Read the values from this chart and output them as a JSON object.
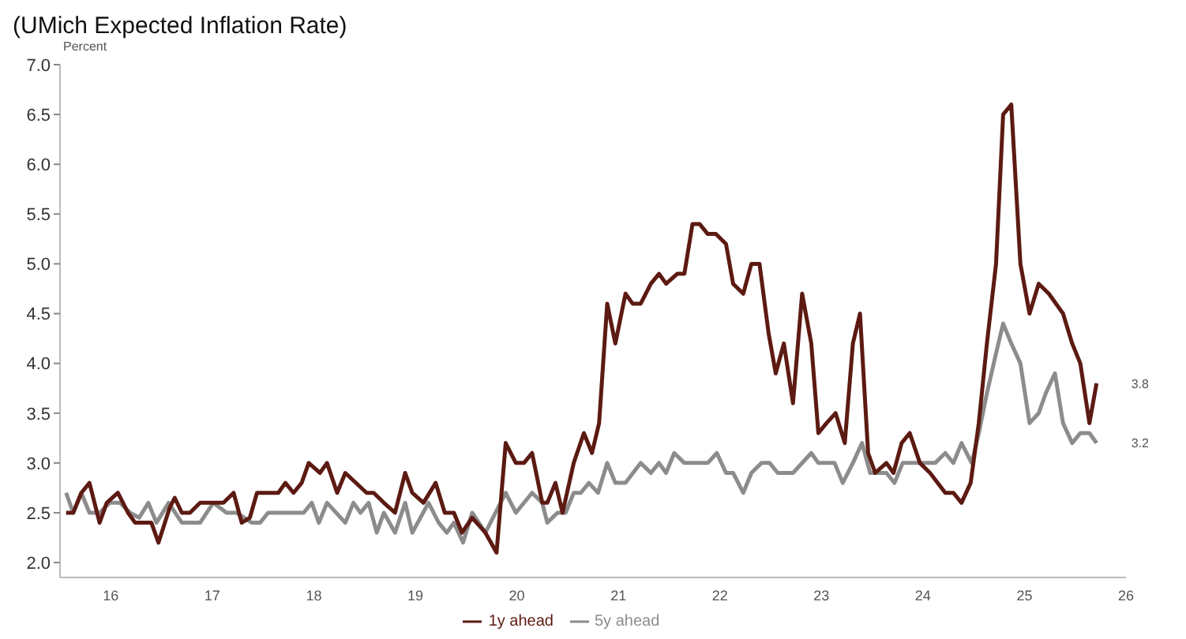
{
  "chart_data": {
    "type": "line",
    "subtitle": "(UMich Expected Inflation Rate)",
    "ylabel": "Percent",
    "xlim": [
      15.5,
      26
    ],
    "xticks": [
      16,
      17,
      18,
      19,
      20,
      21,
      22,
      23,
      24,
      25,
      26
    ],
    "ylim": [
      1.85,
      7
    ],
    "yticks": [
      {
        "value": 2,
        "label": "2.0"
      },
      {
        "value": 2.5,
        "label": "2.5"
      },
      {
        "value": 3,
        "label": "3.0"
      },
      {
        "value": 3.5,
        "label": "3.5"
      },
      {
        "value": 4,
        "label": "4.0"
      },
      {
        "value": 4.5,
        "label": "4.5"
      },
      {
        "value": 5,
        "label": "5.0"
      },
      {
        "value": 5.5,
        "label": "5.5"
      },
      {
        "value": 6,
        "label": "6.0"
      },
      {
        "value": 6.5,
        "label": "6.5"
      },
      {
        "value": 7,
        "label": "7.0"
      }
    ],
    "legend": "bottom",
    "line_style": "solid",
    "series": [
      {
        "name": "5y ahead",
        "color": "#8c8c8c",
        "x": [
          15.56,
          15.63,
          15.71,
          15.79,
          15.89,
          15.99,
          16.09,
          16.19,
          16.28,
          16.37,
          16.45,
          16.57,
          16.7,
          16.88,
          17.01,
          17.14,
          17.24,
          17.39,
          17.47,
          17.55,
          17.9,
          17.98,
          18.05,
          18.13,
          18.31,
          18.39,
          18.46,
          18.54,
          18.62,
          18.69,
          18.8,
          18.9,
          18.97,
          19.13,
          19.23,
          19.31,
          19.38,
          19.47,
          19.56,
          19.69,
          19.79,
          19.89,
          19.99,
          20.15,
          20.25,
          20.3,
          20.4,
          20.48,
          20.56,
          20.63,
          20.71,
          20.8,
          20.89,
          20.97,
          21.07,
          21.22,
          21.32,
          21.4,
          21.47,
          21.55,
          21.65,
          21.88,
          21.97,
          22.06,
          22.13,
          22.23,
          22.31,
          22.41,
          22.49,
          22.57,
          22.72,
          22.9,
          22.97,
          23.13,
          23.21,
          23.31,
          23.4,
          23.48,
          23.64,
          23.72,
          23.8,
          24.12,
          24.22,
          24.3,
          24.38,
          24.48,
          24.55,
          24.63,
          24.72,
          24.79,
          24.87,
          24.96,
          25.05,
          25.14,
          25.21,
          25.3,
          25.38,
          25.47,
          25.55,
          25.64,
          25.71
        ],
        "values": [
          2.7,
          2.5,
          2.7,
          2.5,
          2.5,
          2.6,
          2.6,
          2.5,
          2.45,
          2.6,
          2.4,
          2.6,
          2.4,
          2.4,
          2.6,
          2.5,
          2.5,
          2.4,
          2.4,
          2.5,
          2.5,
          2.6,
          2.4,
          2.6,
          2.4,
          2.6,
          2.5,
          2.6,
          2.3,
          2.5,
          2.3,
          2.6,
          2.3,
          2.6,
          2.4,
          2.3,
          2.4,
          2.2,
          2.5,
          2.3,
          2.5,
          2.7,
          2.5,
          2.7,
          2.6,
          2.4,
          2.5,
          2.5,
          2.7,
          2.7,
          2.8,
          2.7,
          3.0,
          2.8,
          2.8,
          3.0,
          2.9,
          3.0,
          2.9,
          3.1,
          3.0,
          3.0,
          3.1,
          2.9,
          2.9,
          2.7,
          2.9,
          3.0,
          3.0,
          2.9,
          2.9,
          3.1,
          3.0,
          3.0,
          2.8,
          3.0,
          3.2,
          2.9,
          2.9,
          2.8,
          3.0,
          3.0,
          3.1,
          3.0,
          3.2,
          3.0,
          3.3,
          3.7,
          4.1,
          4.4,
          4.2,
          4.0,
          3.4,
          3.5,
          3.7,
          3.9,
          3.4,
          3.2,
          3.3,
          3.3,
          3.2
        ]
      },
      {
        "name": "1y ahead",
        "color": "#5c1a12",
        "x": [
          15.56,
          15.63,
          15.71,
          15.79,
          15.89,
          15.96,
          16.07,
          16.17,
          16.24,
          16.4,
          16.47,
          16.58,
          16.63,
          16.7,
          16.78,
          16.88,
          17.11,
          17.21,
          17.29,
          17.37,
          17.44,
          17.65,
          17.72,
          17.8,
          17.88,
          17.95,
          18.06,
          18.13,
          18.23,
          18.31,
          18.52,
          18.59,
          18.69,
          18.8,
          18.9,
          18.97,
          19.08,
          19.2,
          19.29,
          19.38,
          19.46,
          19.56,
          19.69,
          19.8,
          19.89,
          19.99,
          20.07,
          20.15,
          20.25,
          20.3,
          20.38,
          20.45,
          20.56,
          20.66,
          20.74,
          20.81,
          20.89,
          20.97,
          21.07,
          21.14,
          21.22,
          21.32,
          21.4,
          21.47,
          21.58,
          21.65,
          21.73,
          21.8,
          21.88,
          21.96,
          22.06,
          22.13,
          22.23,
          22.31,
          22.39,
          22.48,
          22.55,
          22.63,
          22.72,
          22.81,
          22.9,
          22.97,
          23.05,
          23.14,
          23.23,
          23.31,
          23.38,
          23.46,
          23.53,
          23.64,
          23.71,
          23.79,
          23.87,
          23.97,
          24.07,
          24.22,
          24.3,
          24.38,
          24.47,
          24.55,
          24.63,
          24.72,
          24.79,
          24.87,
          24.96,
          25.05,
          25.14,
          25.24,
          25.38,
          25.47,
          25.55,
          25.64,
          25.71
        ],
        "values": [
          2.5,
          2.5,
          2.7,
          2.8,
          2.4,
          2.6,
          2.7,
          2.5,
          2.4,
          2.4,
          2.2,
          2.55,
          2.65,
          2.5,
          2.5,
          2.6,
          2.6,
          2.7,
          2.4,
          2.45,
          2.7,
          2.7,
          2.8,
          2.7,
          2.8,
          3.0,
          2.9,
          3.0,
          2.7,
          2.9,
          2.7,
          2.7,
          2.6,
          2.5,
          2.9,
          2.7,
          2.6,
          2.8,
          2.5,
          2.5,
          2.3,
          2.45,
          2.3,
          2.1,
          3.2,
          3.0,
          3.0,
          3.1,
          2.6,
          2.6,
          2.8,
          2.5,
          3.0,
          3.3,
          3.1,
          3.4,
          4.6,
          4.2,
          4.7,
          4.6,
          4.6,
          4.8,
          4.9,
          4.8,
          4.9,
          4.9,
          5.4,
          5.4,
          5.3,
          5.3,
          5.2,
          4.8,
          4.7,
          5.0,
          5.0,
          4.3,
          3.9,
          4.2,
          3.6,
          4.7,
          4.2,
          3.3,
          3.4,
          3.5,
          3.2,
          4.2,
          4.5,
          3.1,
          2.9,
          3.0,
          2.9,
          3.2,
          3.3,
          3.0,
          2.9,
          2.7,
          2.7,
          2.6,
          2.8,
          3.4,
          4.2,
          5.0,
          6.5,
          6.6,
          5.0,
          4.5,
          4.8,
          4.7,
          4.5,
          4.2,
          4.0,
          3.4,
          3.8
        ]
      }
    ],
    "annotations": [
      {
        "text": "3.8",
        "x": 25.71,
        "y": 3.8
      },
      {
        "text": "3.2",
        "x": 25.71,
        "y": 3.2
      }
    ]
  }
}
